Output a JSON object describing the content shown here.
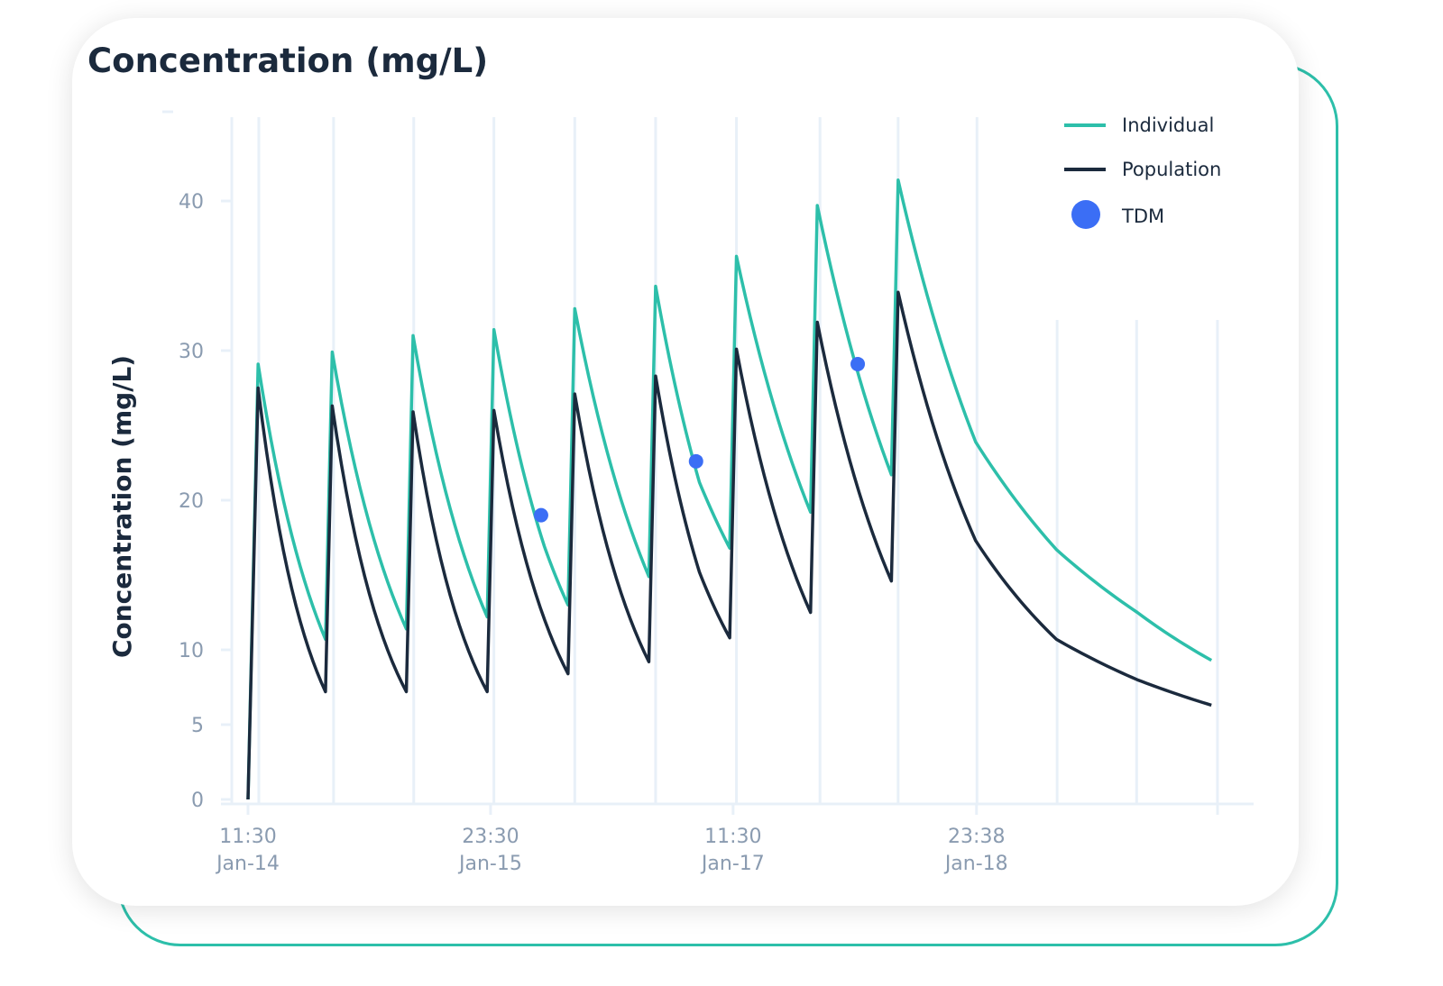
{
  "title": "Concentration (mg/L)",
  "chart_data": {
    "type": "line",
    "title": "Concentration (mg/L)",
    "xlabel": "",
    "ylabel": "Concentration (mg/L)",
    "ylim": [
      0,
      45
    ],
    "yticks": [
      0,
      5,
      10,
      20,
      30,
      40
    ],
    "xticks": [
      {
        "time": "Jan-14 11:30",
        "line1": "11:30",
        "line2": "Jan-14"
      },
      {
        "time": "Jan-15 23:30",
        "line1": "23:30",
        "line2": "Jan-15"
      },
      {
        "time": "Jan-17 11:30",
        "line1": "11:30",
        "line2": "Jan-17"
      },
      {
        "time": "Jan-18 23:38",
        "line1": "23:38",
        "line2": "Jan-18"
      }
    ],
    "grid": "vertical",
    "legend_position": "top-right",
    "colors": {
      "individual": "#2dbfaa",
      "population": "#1b2a3d",
      "tdm": "#3b6ef5",
      "grid": "#e8f0f8",
      "axis_text": "#8a9bb0"
    },
    "series": [
      {
        "name": "Individual",
        "points": [
          [
            "Jan-14 11:30",
            0
          ],
          [
            "Jan-14 13:00",
            29.1
          ],
          [
            "Jan-14 23:00",
            10.7
          ],
          [
            "Jan-15 00:00",
            29.9
          ],
          [
            "Jan-15 11:00",
            11.4
          ],
          [
            "Jan-15 12:00",
            31.0
          ],
          [
            "Jan-15 23:00",
            12.2
          ],
          [
            "Jan-16 00:00",
            31.4
          ],
          [
            "Jan-16 07:30",
            16.9
          ],
          [
            "Jan-16 11:00",
            13.0
          ],
          [
            "Jan-16 12:00",
            32.8
          ],
          [
            "Jan-16 23:00",
            14.9
          ],
          [
            "Jan-17 00:00",
            34.3
          ],
          [
            "Jan-17 06:30",
            21.2
          ],
          [
            "Jan-17 11:00",
            16.8
          ],
          [
            "Jan-17 12:00",
            36.3
          ],
          [
            "Jan-17 23:00",
            19.2
          ],
          [
            "Jan-18 00:00",
            39.7
          ],
          [
            "Jan-18 11:00",
            21.7
          ],
          [
            "Jan-18 12:00",
            41.4
          ],
          [
            "Jan-18 23:30",
            23.9
          ],
          [
            "Jan-19 11:30",
            16.7
          ],
          [
            "Jan-19 23:30",
            12.5
          ],
          [
            "Jan-20 10:30",
            9.3
          ]
        ]
      },
      {
        "name": "Population",
        "points": [
          [
            "Jan-14 11:30",
            0
          ],
          [
            "Jan-14 13:00",
            27.5
          ],
          [
            "Jan-14 23:00",
            7.2
          ],
          [
            "Jan-15 00:00",
            26.3
          ],
          [
            "Jan-15 11:00",
            7.2
          ],
          [
            "Jan-15 12:00",
            25.9
          ],
          [
            "Jan-15 23:00",
            7.2
          ],
          [
            "Jan-16 00:00",
            26.0
          ],
          [
            "Jan-16 11:00",
            8.4
          ],
          [
            "Jan-16 12:00",
            27.1
          ],
          [
            "Jan-16 23:00",
            9.2
          ],
          [
            "Jan-17 00:00",
            28.3
          ],
          [
            "Jan-17 06:30",
            15.2
          ],
          [
            "Jan-17 11:00",
            10.8
          ],
          [
            "Jan-17 12:00",
            30.1
          ],
          [
            "Jan-17 23:00",
            12.5
          ],
          [
            "Jan-18 00:00",
            31.9
          ],
          [
            "Jan-18 11:00",
            14.6
          ],
          [
            "Jan-18 12:00",
            33.9
          ],
          [
            "Jan-18 23:30",
            17.3
          ],
          [
            "Jan-19 11:30",
            10.7
          ],
          [
            "Jan-19 23:30",
            8.0
          ],
          [
            "Jan-20 10:30",
            6.3
          ]
        ]
      },
      {
        "name": "TDM",
        "markers": true,
        "points": [
          [
            "Jan-16 07:00",
            19.0
          ],
          [
            "Jan-17 06:00",
            22.6
          ],
          [
            "Jan-18 06:00",
            29.1
          ]
        ]
      }
    ]
  }
}
